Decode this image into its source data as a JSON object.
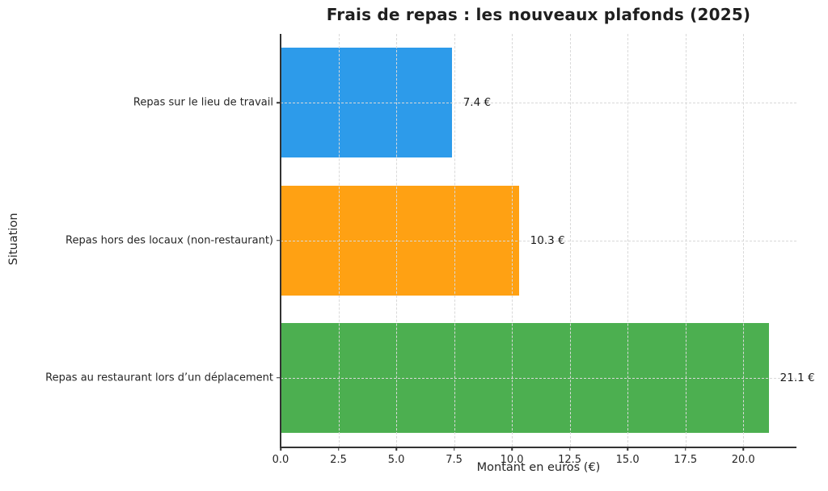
{
  "chart_data": {
    "type": "bar",
    "orientation": "horizontal",
    "title": "Frais de repas : les nouveaux plafonds (2025)",
    "xlabel": "Montant en euros (€)",
    "ylabel": "Situation",
    "categories": [
      "Repas sur le lieu de travail",
      "Repas hors des locaux (non-restaurant)",
      "Repas au restaurant lors d’un déplacement"
    ],
    "values": [
      7.4,
      10.3,
      21.1
    ],
    "value_labels": [
      "7.4 €",
      "10.3 €",
      "21.1 €"
    ],
    "bar_colors": [
      "#2D9BEA",
      "#FFA113",
      "#4CAF50"
    ],
    "x_ticks": [
      "0.0",
      "2.5",
      "5.0",
      "7.5",
      "10.0",
      "12.5",
      "15.0",
      "17.5",
      "20.0"
    ],
    "xlim": [
      0,
      22.3
    ],
    "grid": "dashed, both axes, drawn over bars",
    "legend": "none",
    "spine_color": "#333333",
    "grid_color": "#d9d9d9",
    "background_color": "#ffffff"
  }
}
